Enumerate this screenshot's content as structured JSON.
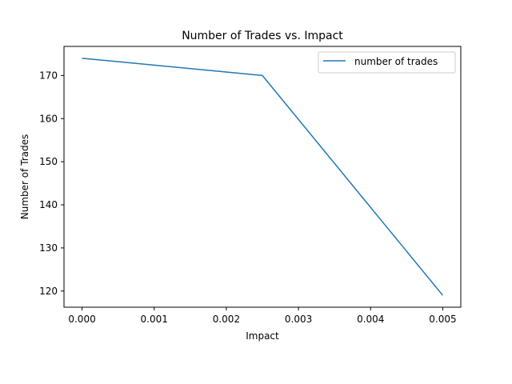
{
  "chart_data": {
    "type": "line",
    "title": "Number of Trades vs. Impact",
    "xlabel": "Impact",
    "ylabel": "Number of Trades",
    "x": [
      0.0,
      0.0025,
      0.005
    ],
    "series": [
      {
        "name": "number of trades",
        "values": [
          174,
          170,
          119
        ],
        "color": "#1f77b4"
      }
    ],
    "xlim": [
      -0.00025,
      0.00525
    ],
    "ylim": [
      116.25,
      176.75
    ],
    "xticks": [
      0.0,
      0.001,
      0.002,
      0.003,
      0.004,
      0.005
    ],
    "xtick_labels": [
      "0.000",
      "0.001",
      "0.002",
      "0.003",
      "0.004",
      "0.005"
    ],
    "yticks": [
      120,
      130,
      140,
      150,
      160,
      170
    ],
    "ytick_labels": [
      "120",
      "130",
      "140",
      "150",
      "160",
      "170"
    ],
    "grid": false,
    "legend_position": "top-right"
  }
}
